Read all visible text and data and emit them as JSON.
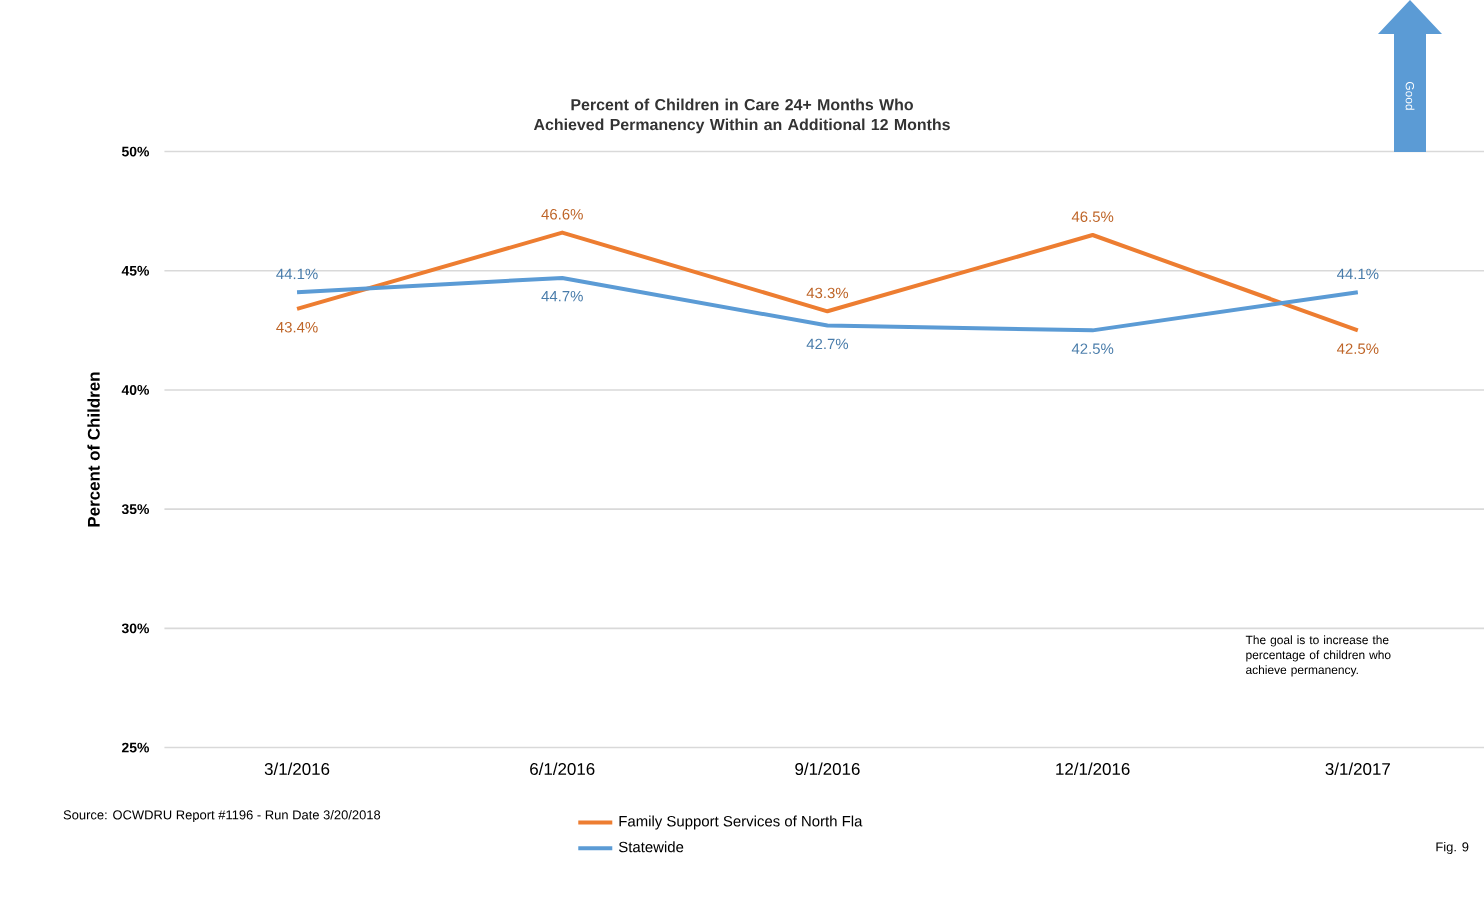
{
  "chart_data": {
    "type": "line",
    "title": "Percent of Children in Care 24+ Months Who Achieved Permanency Within an Additional 12 Months",
    "ylabel": "Percent of Children",
    "categories": [
      "3/1/2016",
      "6/1/2016",
      "9/1/2016",
      "12/1/2016",
      "3/1/2017"
    ],
    "series": [
      {
        "name": "Family Support Services of North Fla",
        "color": "#ed7d31",
        "values": [
          43.4,
          46.6,
          43.3,
          46.5,
          42.5
        ],
        "value_labels": [
          "43.4%",
          "46.6%",
          "43.3%",
          "46.5%",
          "42.5%"
        ]
      },
      {
        "name": "Statewide",
        "color": "#5b9bd5",
        "values": [
          44.1,
          44.7,
          42.7,
          42.5,
          44.1
        ],
        "value_labels": [
          "44.1%",
          "44.7%",
          "42.7%",
          "42.5%",
          "44.1%"
        ]
      }
    ],
    "ylim": [
      25,
      50
    ],
    "yticks": [
      {
        "value": 25,
        "label": "25%"
      },
      {
        "value": 30,
        "label": "30%"
      },
      {
        "value": 35,
        "label": "35%"
      },
      {
        "value": 40,
        "label": "40%"
      },
      {
        "value": 45,
        "label": "45%"
      },
      {
        "value": 50,
        "label": "50%"
      }
    ],
    "grid": "y",
    "legend": "bottom",
    "annotations": [
      "The goal is to increase the percentage of children who achieve permanency.",
      "Source: OCWDRU Report #1196 - Run Date 3/20/2018",
      "Fig. 9",
      "Good"
    ]
  }
}
